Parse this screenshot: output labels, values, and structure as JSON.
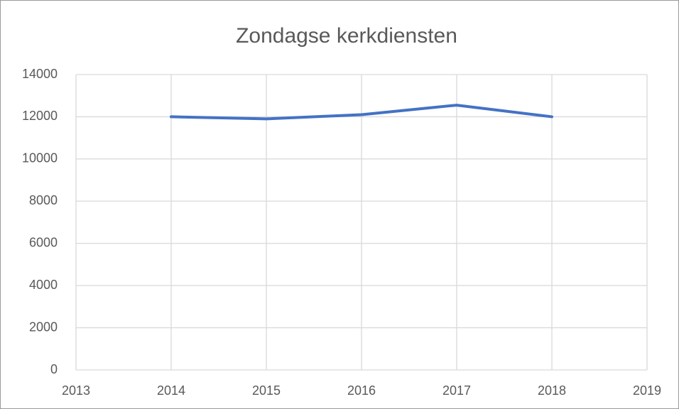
{
  "chart_data": {
    "type": "line",
    "title": "Zondagse kerkdiensten",
    "x": [
      2014,
      2015,
      2016,
      2017,
      2018
    ],
    "values": [
      12000,
      11900,
      12100,
      12550,
      12000
    ],
    "color": "#4472c4",
    "xlim": [
      2013,
      2019
    ],
    "xticks": [
      2013,
      2014,
      2015,
      2016,
      2017,
      2018,
      2019
    ],
    "ylim": [
      0,
      14000
    ],
    "yticks": [
      0,
      2000,
      4000,
      6000,
      8000,
      10000,
      12000,
      14000
    ],
    "grid": true
  }
}
